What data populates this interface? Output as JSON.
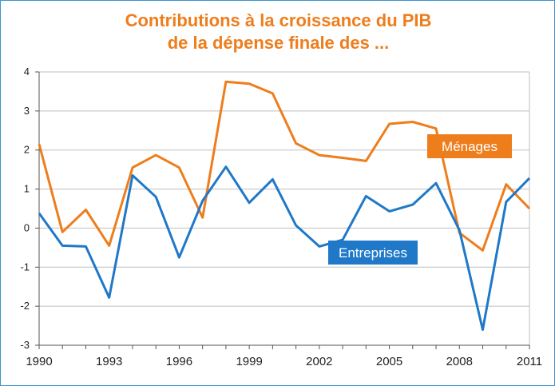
{
  "title_lines": [
    "Contributions à la croissance du PIB",
    "de la dépense finale des ..."
  ],
  "colors": {
    "menages": "#ee7d1c",
    "entreprises": "#1f78c8",
    "title": "#ee7d1c",
    "grid": "#bfbfbf",
    "frame": "#3c93d4"
  },
  "chart_data": {
    "type": "line",
    "title": "Contributions à la croissance du PIB de la dépense finale des ...",
    "xlabel": "",
    "ylabel": "",
    "x": [
      1990,
      1991,
      1992,
      1993,
      1994,
      1995,
      1996,
      1997,
      1998,
      1999,
      2000,
      2001,
      2002,
      2003,
      2004,
      2005,
      2006,
      2007,
      2008,
      2009,
      2010,
      2011
    ],
    "x_ticks": [
      "1990",
      "1993",
      "1996",
      "1999",
      "2002",
      "2005",
      "2008",
      "2011"
    ],
    "y_ticks": [
      "4",
      "3",
      "2",
      "1",
      "0",
      "-1",
      "-2",
      "-3"
    ],
    "xlim": [
      1990,
      2011
    ],
    "ylim": [
      -3,
      4
    ],
    "grid": "horizontal",
    "series": [
      {
        "name": "Ménages",
        "values": [
          2.15,
          -0.1,
          0.47,
          -0.45,
          1.55,
          1.87,
          1.55,
          0.27,
          3.75,
          3.7,
          3.45,
          2.17,
          1.87,
          1.8,
          1.72,
          2.67,
          2.72,
          2.55,
          -0.12,
          -0.57,
          1.12,
          0.5
        ]
      },
      {
        "name": "Entreprises",
        "values": [
          0.38,
          -0.45,
          -0.47,
          -1.78,
          1.35,
          0.8,
          -0.75,
          0.7,
          1.57,
          0.65,
          1.25,
          0.07,
          -0.47,
          -0.3,
          0.82,
          0.43,
          0.6,
          1.15,
          -0.05,
          -2.6,
          0.67,
          1.28
        ]
      }
    ]
  }
}
